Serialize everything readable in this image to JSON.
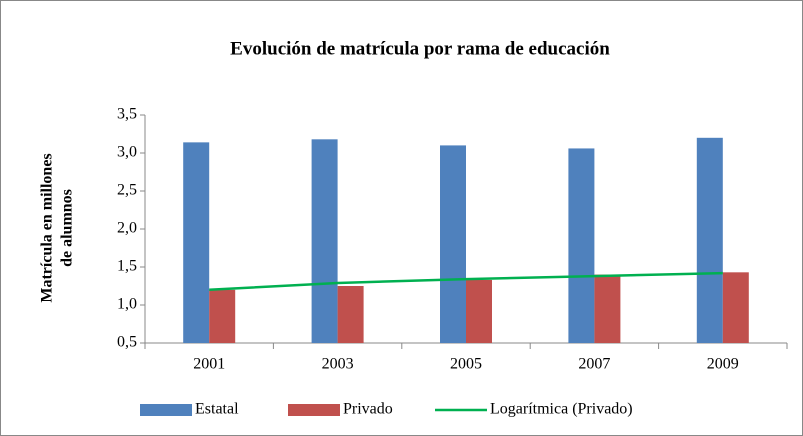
{
  "chart_data": {
    "type": "bar",
    "title": "Evolución de matrícula por rama de educación",
    "ylabel": [
      "Matrícula en millones",
      "de alumnos"
    ],
    "categories": [
      "2001",
      "2003",
      "2005",
      "2007",
      "2009"
    ],
    "series": [
      {
        "name": "Estatal",
        "color": "#4f81bd",
        "values": [
          3.14,
          3.18,
          3.1,
          3.06,
          3.2
        ]
      },
      {
        "name": "Privado",
        "color": "#c0504d",
        "values": [
          1.2,
          1.25,
          1.33,
          1.4,
          1.43
        ]
      },
      {
        "name": "Logarítmica (Privado)",
        "color": "#00b050",
        "type": "line",
        "values": [
          1.2,
          1.29,
          1.34,
          1.38,
          1.42
        ]
      }
    ],
    "ylim": [
      0.5,
      3.5
    ],
    "yticks": [
      {
        "value": 0.5,
        "label": "0,5"
      },
      {
        "value": 1.0,
        "label": "1,0"
      },
      {
        "value": 1.5,
        "label": "1,5"
      },
      {
        "value": 2.0,
        "label": "2,0"
      },
      {
        "value": 2.5,
        "label": "2,5"
      },
      {
        "value": 3.0,
        "label": "3,0"
      },
      {
        "value": 3.5,
        "label": "3,5"
      }
    ],
    "legend": "bottom"
  }
}
